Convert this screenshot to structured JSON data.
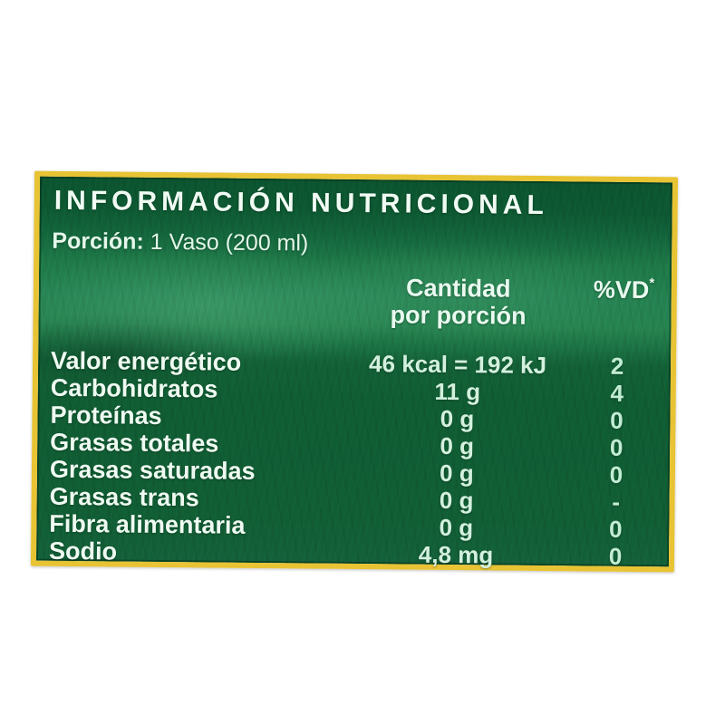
{
  "label": {
    "title": "INFORMACIÓN NUTRICIONAL",
    "portion": {
      "label": "Porción:",
      "value": "1 Vaso (200 ml)"
    },
    "columns": {
      "amount_line1": "Cantidad",
      "amount_line2": "por porción",
      "vd": "%VD",
      "vd_marker": "*"
    },
    "colors": {
      "background_green": "#15693c",
      "border_yellow": "#e8c333",
      "text_white": "#eefaf2",
      "text_mint": "#c2ecd4"
    },
    "table": {
      "rows": [
        {
          "name": "Valor energético",
          "amount": "46 kcal = 192 kJ",
          "vd": "2"
        },
        {
          "name": "Carbohidratos",
          "amount": "11 g",
          "vd": "4"
        },
        {
          "name": "Proteínas",
          "amount": "0 g",
          "vd": "0"
        },
        {
          "name": "Grasas totales",
          "amount": "0 g",
          "vd": "0"
        },
        {
          "name": "Grasas saturadas",
          "amount": "0 g",
          "vd": "0"
        },
        {
          "name": "Grasas trans",
          "amount": "0 g",
          "vd": "-"
        },
        {
          "name": "Fibra alimentaria",
          "amount": "0 g",
          "vd": "0"
        },
        {
          "name": "Sodio",
          "amount": "4,8 mg",
          "vd": "0"
        }
      ]
    }
  }
}
